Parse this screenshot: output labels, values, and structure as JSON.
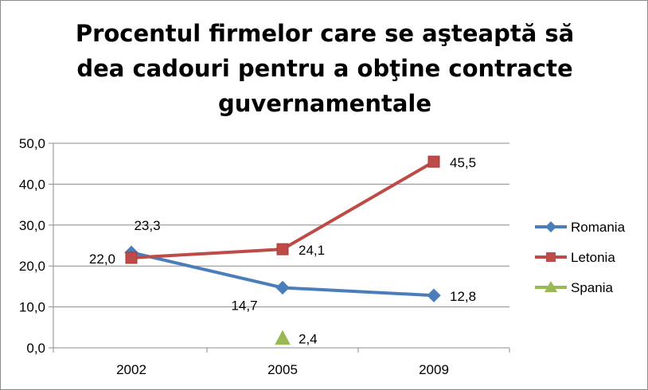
{
  "chart_data": {
    "type": "line",
    "title_lines": [
      "Procentul firmelor care se aşteaptă să",
      "dea cadouri pentru a obţine contracte",
      "guvernamentale"
    ],
    "categories": [
      "2002",
      "2005",
      "2009"
    ],
    "ylim": [
      0,
      50
    ],
    "y_ticks": [
      "0,0",
      "10,0",
      "20,0",
      "30,0",
      "40,0",
      "50,0"
    ],
    "y_tick_values": [
      0,
      10,
      20,
      30,
      40,
      50
    ],
    "grid": true,
    "legend_position": "right",
    "series": [
      {
        "name": "Romania",
        "color": "#4a7ebb",
        "marker": "diamond",
        "values": [
          23.3,
          14.7,
          12.8
        ],
        "labels": [
          "23,3",
          "14,7",
          "12,8"
        ]
      },
      {
        "name": "Letonia",
        "color": "#be4b48",
        "marker": "square",
        "values": [
          22.0,
          24.1,
          45.5
        ],
        "labels": [
          "22,0",
          "24,1",
          "45,5"
        ]
      },
      {
        "name": "Spania",
        "color": "#98b954",
        "marker": "triangle",
        "values": [
          null,
          2.4,
          null
        ],
        "labels": [
          null,
          "2,4",
          null
        ]
      }
    ]
  }
}
